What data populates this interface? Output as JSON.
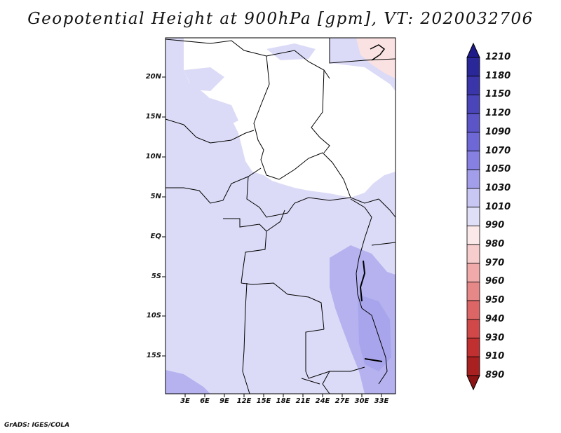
{
  "title": "Geopotential Height at 900hPa [gpm], VT: 2020032706",
  "credit": "GrADS: IGES/COLA",
  "map": {
    "lat_labels": [
      "20N",
      "15N",
      "10N",
      "5N",
      "EQ",
      "5S",
      "10S",
      "15S"
    ],
    "lon_labels": [
      "3E",
      "6E",
      "9E",
      "12E",
      "15E",
      "18E",
      "21E",
      "24E",
      "27E",
      "30E",
      "33E"
    ]
  },
  "colorbar": {
    "levels": [
      "1210",
      "1180",
      "1150",
      "1120",
      "1090",
      "1070",
      "1050",
      "1030",
      "1010",
      "990",
      "980",
      "970",
      "960",
      "950",
      "940",
      "930",
      "910",
      "890"
    ],
    "colors": [
      "#1e1a8a",
      "#2a2898",
      "#3a35a8",
      "#4a45b8",
      "#5b55c8",
      "#6e68d6",
      "#8580e2",
      "#a29eea",
      "#c8c6f3",
      "#e0dff8",
      "#fbe8e8",
      "#f7cccc",
      "#f0aaaa",
      "#e68888",
      "#dc6666",
      "#d04848",
      "#c03030",
      "#a82020",
      "#8c1414"
    ]
  }
}
